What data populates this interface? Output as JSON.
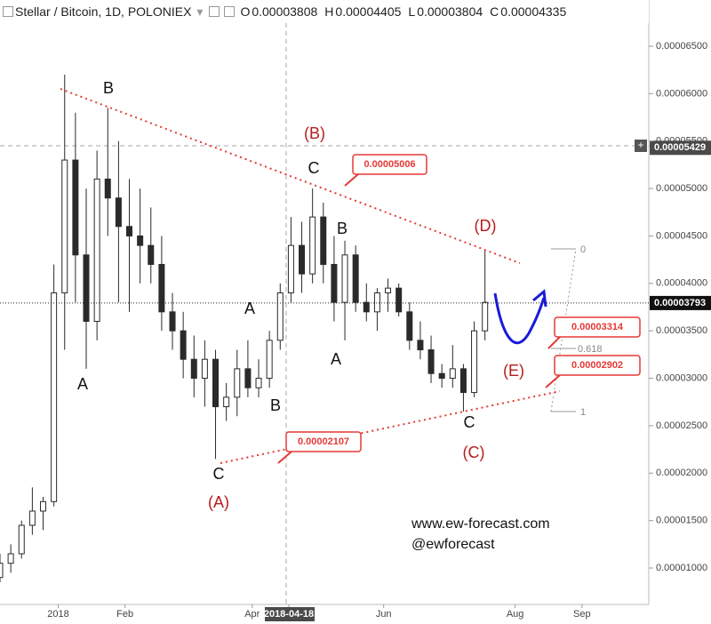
{
  "header": {
    "title": "Stellar / Bitcoin, 1D, POLONIEX",
    "ohlc": [
      {
        "key": "O",
        "value": "0.00003808"
      },
      {
        "key": "H",
        "value": "0.00004405"
      },
      {
        "key": "L",
        "value": "0.00003804"
      },
      {
        "key": "C",
        "value": "0.00004335"
      }
    ]
  },
  "chart_data": {
    "type": "candlestick",
    "x": [
      "2017-12-05",
      "2017-12-10",
      "2017-12-15",
      "2017-12-20",
      "2017-12-25",
      "2017-12-30",
      "2018-01-04",
      "2018-01-09",
      "2018-01-14",
      "2018-01-19",
      "2018-01-24",
      "2018-01-29",
      "2018-02-03",
      "2018-02-08",
      "2018-02-13",
      "2018-02-18",
      "2018-02-23",
      "2018-02-28",
      "2018-03-05",
      "2018-03-10",
      "2018-03-15",
      "2018-03-20",
      "2018-03-25",
      "2018-03-30",
      "2018-04-04",
      "2018-04-09",
      "2018-04-14",
      "2018-04-19",
      "2018-04-24",
      "2018-04-29",
      "2018-05-04",
      "2018-05-09",
      "2018-05-14",
      "2018-05-19",
      "2018-05-24",
      "2018-05-29",
      "2018-06-03",
      "2018-06-08",
      "2018-06-13",
      "2018-06-18",
      "2018-06-23",
      "2018-06-28",
      "2018-07-03",
      "2018-07-08",
      "2018-07-13",
      "2018-07-18"
    ],
    "open": [
      9e-06,
      1.05e-05,
      1.15e-05,
      1.45e-05,
      1.6e-05,
      1.7e-05,
      3.9e-05,
      5.3e-05,
      4.3e-05,
      3.6e-05,
      5.1e-05,
      4.9e-05,
      4.6e-05,
      4.5e-05,
      4.4e-05,
      4.2e-05,
      3.7e-05,
      3.5e-05,
      3.2e-05,
      3e-05,
      3.2e-05,
      2.7e-05,
      2.8e-05,
      3.1e-05,
      2.9e-05,
      3e-05,
      3.4e-05,
      3.9e-05,
      4.4e-05,
      4.1e-05,
      4.7e-05,
      4.2e-05,
      3.8e-05,
      4.3e-05,
      3.8e-05,
      3.7e-05,
      3.9e-05,
      3.95e-05,
      3.7e-05,
      3.4e-05,
      3.3e-05,
      3.05e-05,
      3e-05,
      3.1e-05,
      2.85e-05,
      3.5e-05
    ],
    "high": [
      1.15e-05,
      1.25e-05,
      1.5e-05,
      1.85e-05,
      1.75e-05,
      4.2e-05,
      6.2e-05,
      5.8e-05,
      5e-05,
      5.4e-05,
      5.85e-05,
      5.5e-05,
      5.1e-05,
      5e-05,
      4.8e-05,
      4.5e-05,
      3.9e-05,
      3.7e-05,
      3.45e-05,
      3.4e-05,
      3.3e-05,
      2.95e-05,
      3.3e-05,
      3.4e-05,
      3.2e-05,
      3.5e-05,
      4e-05,
      4.7e-05,
      4.65e-05,
      5e-05,
      4.85e-05,
      4.5e-05,
      4.45e-05,
      4.4e-05,
      4e-05,
      3.95e-05,
      4.05e-05,
      4e-05,
      3.8e-05,
      3.6e-05,
      3.45e-05,
      3.15e-05,
      3.35e-05,
      3.15e-05,
      3.6e-05,
      4.35e-05
    ],
    "low": [
      8.5e-06,
      9.5e-06,
      1.1e-05,
      1.35e-05,
      1.4e-05,
      1.65e-05,
      3.3e-05,
      3.8e-05,
      3.1e-05,
      3.4e-05,
      4.5e-05,
      3.8e-05,
      3.7e-05,
      4e-05,
      4e-05,
      3.5e-05,
      3.3e-05,
      3e-05,
      2.8e-05,
      2.7e-05,
      2.15e-05,
      2.55e-05,
      2.6e-05,
      2.8e-05,
      2.8e-05,
      2.9e-05,
      3.3e-05,
      3.8e-05,
      3.9e-05,
      4e-05,
      4e-05,
      3.6e-05,
      3.4e-05,
      3.7e-05,
      3.6e-05,
      3.5e-05,
      3.7e-05,
      3.65e-05,
      3.3e-05,
      3.2e-05,
      2.95e-05,
      2.9e-05,
      2.9e-05,
      2.65e-05,
      2.8e-05,
      3.4e-05
    ],
    "close": [
      1.05e-05,
      1.15e-05,
      1.45e-05,
      1.6e-05,
      1.7e-05,
      3.9e-05,
      5.3e-05,
      4.3e-05,
      3.6e-05,
      5.1e-05,
      4.9e-05,
      4.6e-05,
      4.5e-05,
      4.4e-05,
      4.2e-05,
      3.7e-05,
      3.5e-05,
      3.2e-05,
      3e-05,
      3.2e-05,
      2.7e-05,
      2.8e-05,
      3.1e-05,
      2.9e-05,
      3e-05,
      3.4e-05,
      3.9e-05,
      4.4e-05,
      4.1e-05,
      4.7e-05,
      4.2e-05,
      3.8e-05,
      4.3e-05,
      3.8e-05,
      3.7e-05,
      3.9e-05,
      3.95e-05,
      3.7e-05,
      3.4e-05,
      3.3e-05,
      3.05e-05,
      3e-05,
      3.1e-05,
      2.85e-05,
      3.5e-05,
      3.8e-05
    ],
    "color": "#2a2a2a",
    "xlim": [
      "2017-12-05",
      "2018-10-02"
    ],
    "xticks": [
      {
        "value": "2018-01-01",
        "label": "2018"
      },
      {
        "value": "2018-02-01",
        "label": "Feb"
      },
      {
        "value": "2018-04-01",
        "label": "Apr"
      },
      "2018-04-18",
      {
        "value": "2018-06-01",
        "label": "Jun"
      },
      {
        "value": "2018-08-01",
        "label": "Aug"
      },
      {
        "value": "2018-09-01",
        "label": "Sep"
      }
    ],
    "ylim": [
      6.16e-06,
      6.987e-05
    ],
    "yticks": [
      {
        "value": 1e-05,
        "label": "0.00001000"
      },
      {
        "value": 1.5e-05,
        "label": "0.00001500"
      },
      {
        "value": 2e-05,
        "label": "0.00002000"
      },
      {
        "value": 2.5e-05,
        "label": "0.00002500"
      },
      {
        "value": 3e-05,
        "label": "0.00003000"
      },
      {
        "value": 3.5e-05,
        "label": "0.00003500"
      },
      {
        "value": 4e-05,
        "label": "0.00004000"
      },
      {
        "value": 4.5e-05,
        "label": "0.00004500"
      },
      {
        "value": 5e-05,
        "label": "0.00005000"
      },
      {
        "value": 5.5e-05,
        "label": "0.00005500"
      },
      {
        "value": 6e-05,
        "label": "0.00006000"
      },
      {
        "value": 6.5e-05,
        "label": "0.00006500"
      }
    ],
    "crosshair_price": {
      "value": 5.429e-05,
      "label": "0.00005429"
    },
    "last_price": {
      "value": 3.793e-05,
      "label": "0.00003793"
    },
    "annotations": [
      {
        "text": "A",
        "color": "#111111"
      },
      {
        "text": "B",
        "color": "#111111"
      },
      {
        "text": "C",
        "color": "#111111"
      },
      {
        "text": "(A)",
        "color": "#b71c1c"
      },
      {
        "text": "A",
        "color": "#111111"
      },
      {
        "text": "B",
        "color": "#111111"
      },
      {
        "text": "(B)",
        "color": "#b71c1c"
      },
      {
        "text": "C",
        "color": "#111111"
      },
      {
        "text": "B",
        "color": "#111111"
      },
      {
        "text": "A",
        "color": "#111111"
      },
      {
        "text": "C",
        "color": "#111111"
      },
      {
        "text": "(C)",
        "color": "#b71c1c"
      },
      {
        "text": "(D)",
        "color": "#b71c1c"
      },
      {
        "text": "(E)",
        "color": "#b71c1c"
      }
    ],
    "callouts": [
      {
        "value": 5.006e-05,
        "label": "0.00005006"
      },
      {
        "value": 2.107e-05,
        "label": "0.00002107"
      },
      {
        "value": 3.314e-05,
        "label": "0.00003314"
      },
      {
        "value": 2.902e-05,
        "label": "0.00002902"
      }
    ],
    "fib_levels": [
      {
        "value": 0,
        "label": "0"
      },
      {
        "value": 0.618,
        "label": "0.618"
      },
      {
        "value": 1,
        "label": "1"
      }
    ],
    "watermark": [
      "www.ew-forecast.com",
      "@ewforecast"
    ]
  }
}
